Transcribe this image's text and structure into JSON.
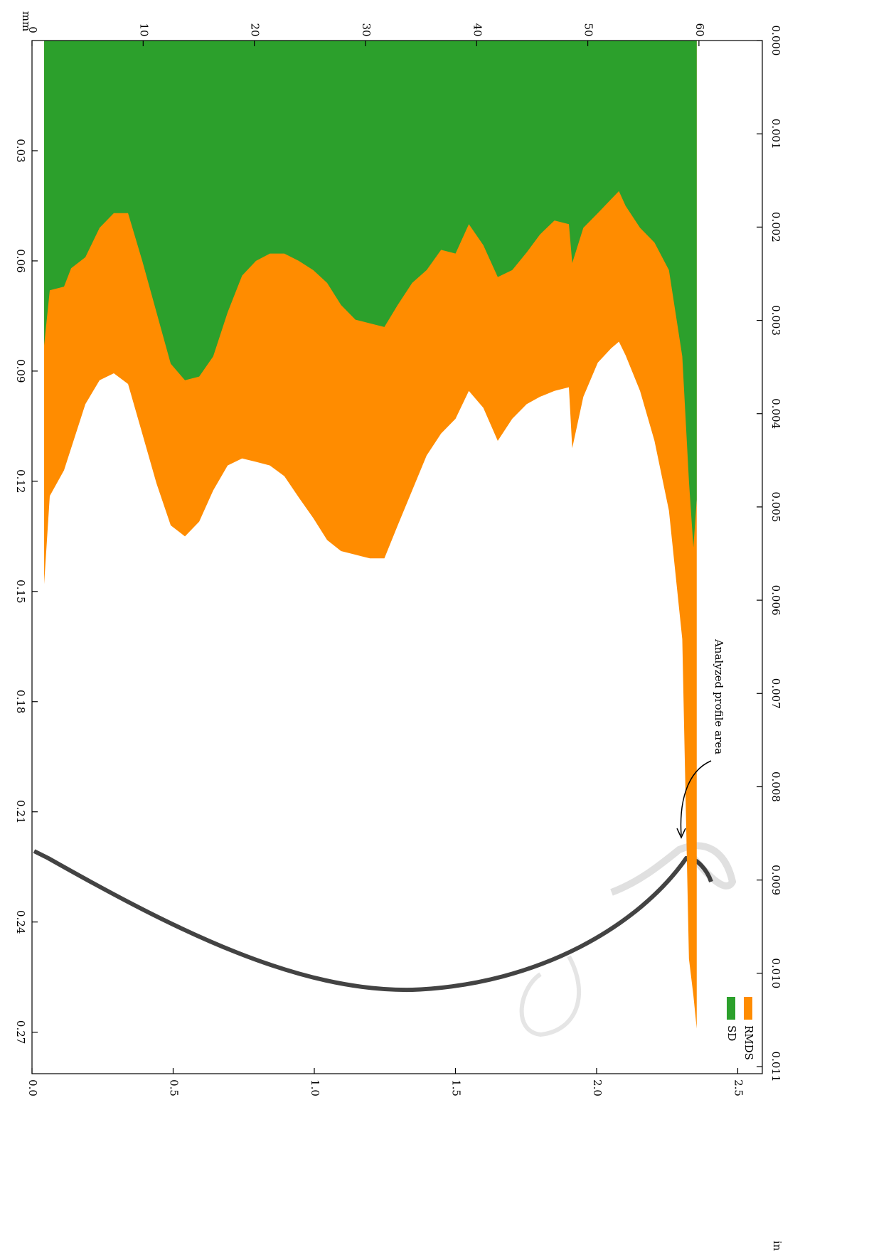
{
  "chart_data": {
    "type": "area",
    "annotation": "Analyzed profile area",
    "units_primary": "mm",
    "units_secondary": "in",
    "x": [
      1.09,
      1.6,
      2.88,
      3.52,
      4.8,
      6.08,
      7.36,
      8.64,
      9.92,
      11.2,
      12.48,
      13.76,
      15.04,
      16.3,
      17.6,
      18.9,
      20.15,
      21.4,
      22.7,
      24.0,
      25.3,
      26.55,
      27.8,
      29.1,
      30.4,
      31.7,
      32.9,
      34.2,
      35.5,
      36.8,
      38.1,
      39.3,
      40.6,
      41.9,
      43.2,
      44.5,
      45.7,
      47.0,
      48.3,
      48.6,
      49.6,
      50.9,
      52.1,
      52.8,
      53.4,
      54.7,
      56.0,
      57.3,
      58.5,
      59.1,
      59.5,
      59.8
    ],
    "series": [
      {
        "name": "RMDS",
        "color": "#ff8c00",
        "values": [
          0.148,
          0.124,
          0.117,
          0.111,
          0.099,
          0.0925,
          0.0906,
          0.0935,
          0.107,
          0.1206,
          0.132,
          0.135,
          0.131,
          0.1225,
          0.1157,
          0.1138,
          0.1147,
          0.1157,
          0.1186,
          0.1244,
          0.13,
          0.136,
          0.139,
          0.14,
          0.141,
          0.141,
          0.132,
          0.1225,
          0.113,
          0.107,
          0.103,
          0.0954,
          0.1,
          0.109,
          0.103,
          0.099,
          0.097,
          0.0954,
          0.0944,
          0.111,
          0.097,
          0.0877,
          0.0838,
          0.082,
          0.0857,
          0.0954,
          0.109,
          0.128,
          0.163,
          0.25,
          0.26,
          0.269
        ]
      },
      {
        "name": "SD",
        "color": "#2ca02c",
        "values": [
          0.083,
          0.068,
          0.067,
          0.062,
          0.059,
          0.051,
          0.047,
          0.047,
          0.06,
          0.074,
          0.088,
          0.0925,
          0.0915,
          0.086,
          0.074,
          0.064,
          0.06,
          0.058,
          0.058,
          0.06,
          0.0625,
          0.066,
          0.072,
          0.076,
          0.077,
          0.078,
          0.072,
          0.066,
          0.0625,
          0.057,
          0.058,
          0.05,
          0.0557,
          0.0644,
          0.0625,
          0.0577,
          0.0528,
          0.049,
          0.05,
          0.0606,
          0.051,
          0.047,
          0.0432,
          0.041,
          0.045,
          0.051,
          0.055,
          0.0625,
          0.086,
          0.12,
          0.138,
          0.125
        ]
      }
    ],
    "xlim": [
      0,
      65.7
    ],
    "xticks": [
      0,
      10,
      20,
      30,
      40,
      50,
      60
    ],
    "x2lim": [
      0,
      2.587
    ],
    "x2ticks": [
      {
        "value": 0,
        "label": "0.0"
      },
      0.5,
      {
        "value": 1,
        "label": "1.0"
      },
      1.5,
      {
        "value": 2,
        "label": "2.0"
      },
      2.5
    ],
    "ylim": [
      0,
      0.2813
    ],
    "yticks": [
      0.03,
      0.06,
      0.09,
      0.12,
      0.15,
      0.18,
      0.21,
      0.24,
      0.27
    ],
    "y2lim": [
      0,
      0.011076
    ],
    "y2ticks": [
      {
        "value": 0,
        "label": "0.000"
      },
      0.001,
      0.002,
      0.003,
      0.004,
      0.005,
      0.006,
      0.007,
      0.008,
      0.009,
      {
        "value": 0.01,
        "label": "0.010"
      },
      0.011
    ]
  }
}
